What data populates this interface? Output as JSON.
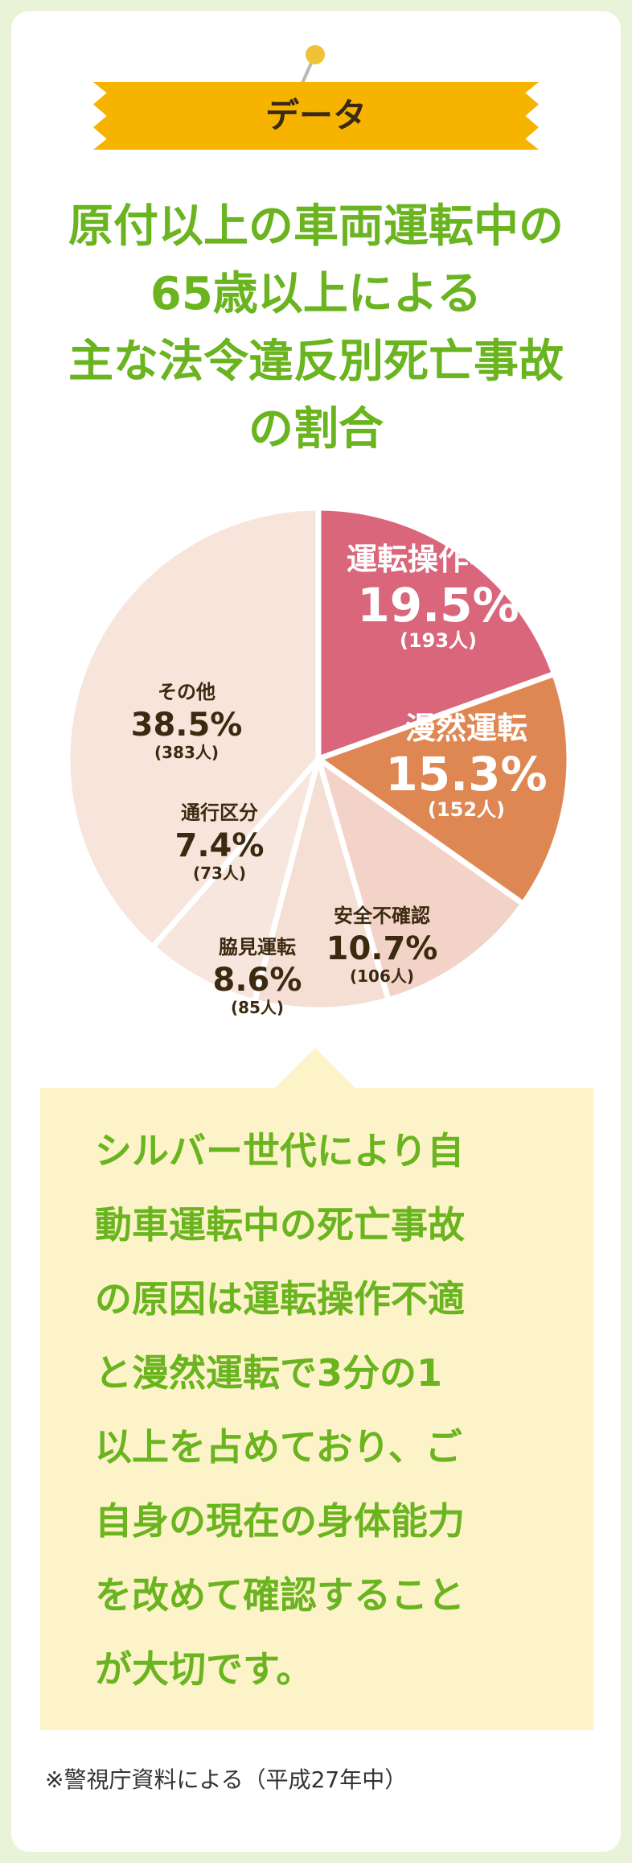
{
  "tag": "データ",
  "title_lines": [
    "原付以上の車両運転中の",
    "65歳以上による",
    "主な法令違反別死亡事故",
    "の割合"
  ],
  "colors": {
    "title_green": "#6ab41f",
    "ribbon": "#f6b400",
    "callout_bg": "#fcf3c9",
    "page_bg": "#e9f3d8"
  },
  "chart_data": {
    "type": "pie",
    "unit": "%",
    "slices": [
      {
        "name": "運転操作不適",
        "percent_label": "19.5%",
        "count_label": "(193人)",
        "value": 19.5,
        "count": 193,
        "color": "#d9667b",
        "label_color": "#ffffff"
      },
      {
        "name": "漫然運転",
        "percent_label": "15.3%",
        "count_label": "(152人)",
        "value": 15.3,
        "count": 152,
        "color": "#df8753",
        "label_color": "#ffffff"
      },
      {
        "name": "安全不確認",
        "percent_label": "10.7%",
        "count_label": "(106人)",
        "value": 10.7,
        "count": 106,
        "color": "#f3d3c7",
        "label_color": "#3b2a10"
      },
      {
        "name": "脇見運転",
        "percent_label": "8.6%",
        "count_label": "(85人)",
        "value": 8.6,
        "count": 85,
        "color": "#f5dfd4",
        "label_color": "#3b2a10"
      },
      {
        "name": "通行区分",
        "percent_label": "7.4%",
        "count_label": "(73人)",
        "value": 7.4,
        "count": 73,
        "color": "#f7e6dd",
        "label_color": "#3b2a10"
      },
      {
        "name": "その他",
        "percent_label": "38.5%",
        "count_label": "(383人)",
        "value": 38.5,
        "count": 383,
        "color": "#f7e4da",
        "label_color": "#3b2a10"
      }
    ]
  },
  "callout_lines": [
    "シルバー世代により自",
    "動車運転中の死亡事故",
    "の原因は運転操作不適",
    "と漫然運転で3分の1",
    "以上を占めており、ご",
    "自身の現在の身体能力",
    "を改めて確認すること",
    "が大切です。"
  ],
  "footnote": "※警視庁資料による（平成27年中）"
}
